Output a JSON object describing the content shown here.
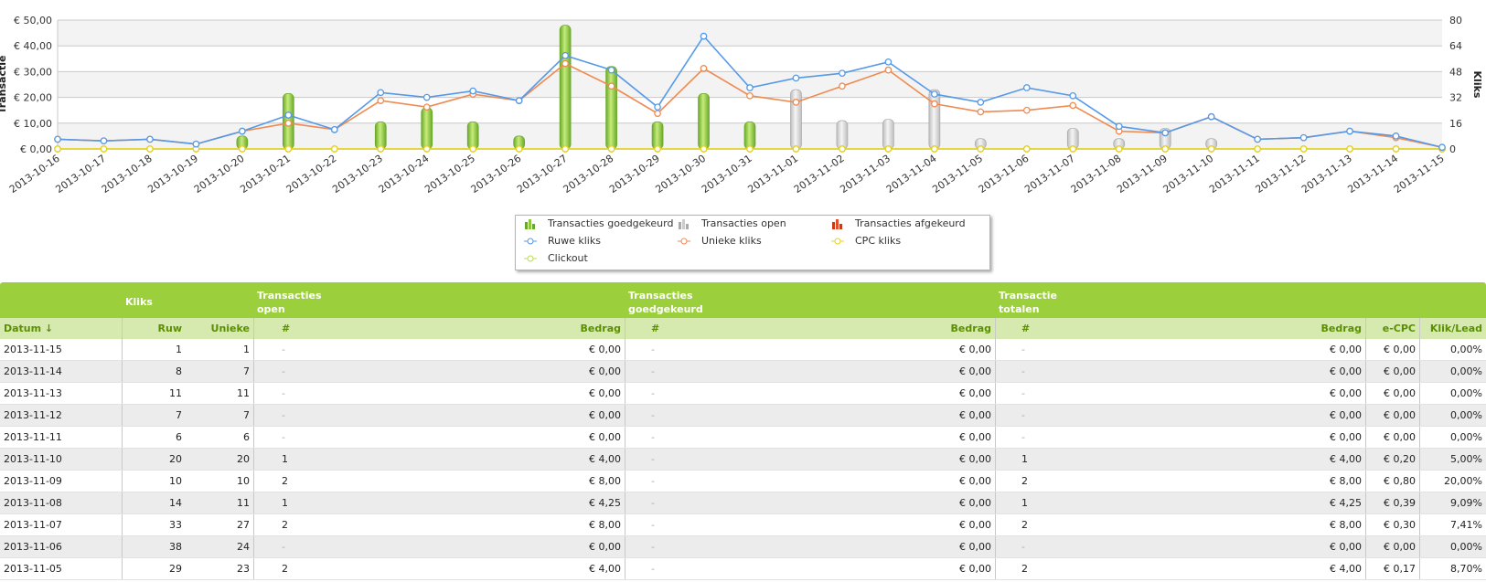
{
  "chart_data": {
    "type": "line",
    "dates": [
      "2013-10-16",
      "2013-10-17",
      "2013-10-18",
      "2013-10-19",
      "2013-10-20",
      "2013-10-21",
      "2013-10-22",
      "2013-10-23",
      "2013-10-24",
      "2013-10-25",
      "2013-10-26",
      "2013-10-27",
      "2013-10-28",
      "2013-10-29",
      "2013-10-30",
      "2013-10-31",
      "2013-11-01",
      "2013-11-02",
      "2013-11-03",
      "2013-11-04",
      "2013-11-05",
      "2013-11-06",
      "2013-11-07",
      "2013-11-08",
      "2013-11-09",
      "2013-11-10",
      "2013-11-11",
      "2013-11-12",
      "2013-11-13",
      "2013-11-14",
      "2013-11-15"
    ],
    "y_left_label": "Transactie",
    "y_left_ticks": [
      "€ 0,00",
      "€ 10,00",
      "€ 20,00",
      "€ 30,00",
      "€ 40,00",
      "€ 50,00"
    ],
    "y_left_range": [
      0,
      50
    ],
    "y_right_label": "Kliks",
    "y_right_ticks": [
      "0",
      "16",
      "32",
      "48",
      "64",
      "80"
    ],
    "y_right_range": [
      0,
      80
    ],
    "grid": true,
    "series": [
      {
        "name": "Transacties goedgekeurd",
        "kind": "bar",
        "color": "#8cc63f",
        "values": [
          0,
          0,
          0,
          0,
          5,
          21.5,
          0,
          10.5,
          16,
          10.5,
          5,
          48,
          32,
          10.5,
          21.5,
          10.5,
          0,
          0,
          0,
          0,
          0,
          0,
          0,
          0,
          0,
          0,
          0,
          0,
          0,
          0,
          0
        ]
      },
      {
        "name": "Transacties open",
        "kind": "bar",
        "color": "#cfcfcf",
        "values": [
          0,
          0,
          0,
          0,
          0,
          0,
          0,
          0,
          0,
          0,
          0,
          0,
          0,
          0,
          0,
          0,
          23,
          11,
          11.5,
          23,
          4,
          0,
          8,
          4,
          8,
          4,
          0,
          0,
          0,
          0,
          0
        ]
      },
      {
        "name": "Transacties afgekeurd",
        "kind": "bar",
        "color": "#e0502a",
        "values": [
          0,
          0,
          0,
          0,
          0,
          0,
          0,
          0,
          0,
          0,
          0,
          0,
          0,
          0,
          0,
          0,
          0,
          0,
          0,
          0,
          0,
          0,
          0,
          0,
          0,
          0,
          0,
          0,
          0,
          0,
          0
        ]
      },
      {
        "name": "Ruwe kliks",
        "kind": "line",
        "color": "#5599e8",
        "values": [
          6,
          5,
          6,
          3,
          11,
          21,
          12,
          35,
          32,
          36,
          30,
          58,
          49,
          26,
          70,
          38,
          44,
          47,
          54,
          34,
          29,
          38,
          33,
          14,
          10,
          20,
          6,
          7,
          11,
          8,
          1
        ]
      },
      {
        "name": "Unieke kliks",
        "kind": "line",
        "color": "#f08a50",
        "values": [
          6,
          5,
          6,
          3,
          11,
          16,
          12,
          30,
          26,
          34,
          30,
          53,
          39,
          22,
          50,
          33,
          29,
          39,
          49,
          28,
          23,
          24,
          27,
          11,
          10,
          20,
          6,
          7,
          11,
          7,
          1
        ]
      },
      {
        "name": "CPC kliks",
        "kind": "line",
        "color": "#e8d020",
        "values": [
          0,
          0,
          0,
          0,
          0,
          0,
          0,
          0,
          0,
          0,
          0,
          0,
          0,
          0,
          0,
          0,
          0,
          0,
          0,
          0,
          0,
          0,
          0,
          0,
          0,
          0,
          0,
          0,
          0,
          0,
          0
        ]
      },
      {
        "name": "Clickout",
        "kind": "line",
        "color": "#b8e04a",
        "values": [
          0,
          0,
          0,
          0,
          0,
          0,
          0,
          0,
          0,
          0,
          0,
          0,
          0,
          0,
          0,
          0,
          0,
          0,
          0,
          0,
          0,
          0,
          0,
          0,
          0,
          0,
          0,
          0,
          0,
          0,
          0
        ]
      }
    ]
  },
  "table": {
    "group_headers": {
      "kliks": "Kliks",
      "open_line1": "Transacties",
      "open_line2": "open",
      "goed_line1": "Transacties",
      "goed_line2": "goedgekeurd",
      "tot_line1": "Transactie",
      "tot_line2": "totalen"
    },
    "columns": {
      "datum": "Datum ↓",
      "ruw": "Ruw",
      "unieke": "Unieke",
      "open_n": "#",
      "open_bedrag": "Bedrag",
      "goed_n": "#",
      "goed_bedrag": "Bedrag",
      "tot_n": "#",
      "tot_bedrag": "Bedrag",
      "ecpc": "e-CPC",
      "klik_lead": "Klik/Lead"
    },
    "rows": [
      {
        "datum": "2013-11-15",
        "ruw": "1",
        "unieke": "1",
        "open_n": "-",
        "open_bedrag": "€ 0,00",
        "goed_n": "-",
        "goed_bedrag": "€ 0,00",
        "tot_n": "-",
        "tot_bedrag": "€ 0,00",
        "ecpc": "€ 0,00",
        "klik_lead": "0,00%"
      },
      {
        "datum": "2013-11-14",
        "ruw": "8",
        "unieke": "7",
        "open_n": "-",
        "open_bedrag": "€ 0,00",
        "goed_n": "-",
        "goed_bedrag": "€ 0,00",
        "tot_n": "-",
        "tot_bedrag": "€ 0,00",
        "ecpc": "€ 0,00",
        "klik_lead": "0,00%"
      },
      {
        "datum": "2013-11-13",
        "ruw": "11",
        "unieke": "11",
        "open_n": "-",
        "open_bedrag": "€ 0,00",
        "goed_n": "-",
        "goed_bedrag": "€ 0,00",
        "tot_n": "-",
        "tot_bedrag": "€ 0,00",
        "ecpc": "€ 0,00",
        "klik_lead": "0,00%"
      },
      {
        "datum": "2013-11-12",
        "ruw": "7",
        "unieke": "7",
        "open_n": "-",
        "open_bedrag": "€ 0,00",
        "goed_n": "-",
        "goed_bedrag": "€ 0,00",
        "tot_n": "-",
        "tot_bedrag": "€ 0,00",
        "ecpc": "€ 0,00",
        "klik_lead": "0,00%"
      },
      {
        "datum": "2013-11-11",
        "ruw": "6",
        "unieke": "6",
        "open_n": "-",
        "open_bedrag": "€ 0,00",
        "goed_n": "-",
        "goed_bedrag": "€ 0,00",
        "tot_n": "-",
        "tot_bedrag": "€ 0,00",
        "ecpc": "€ 0,00",
        "klik_lead": "0,00%"
      },
      {
        "datum": "2013-11-10",
        "ruw": "20",
        "unieke": "20",
        "open_n": "1",
        "open_bedrag": "€ 4,00",
        "goed_n": "-",
        "goed_bedrag": "€ 0,00",
        "tot_n": "1",
        "tot_bedrag": "€ 4,00",
        "ecpc": "€ 0,20",
        "klik_lead": "5,00%"
      },
      {
        "datum": "2013-11-09",
        "ruw": "10",
        "unieke": "10",
        "open_n": "2",
        "open_bedrag": "€ 8,00",
        "goed_n": "-",
        "goed_bedrag": "€ 0,00",
        "tot_n": "2",
        "tot_bedrag": "€ 8,00",
        "ecpc": "€ 0,80",
        "klik_lead": "20,00%"
      },
      {
        "datum": "2013-11-08",
        "ruw": "14",
        "unieke": "11",
        "open_n": "1",
        "open_bedrag": "€ 4,25",
        "goed_n": "-",
        "goed_bedrag": "€ 0,00",
        "tot_n": "1",
        "tot_bedrag": "€ 4,25",
        "ecpc": "€ 0,39",
        "klik_lead": "9,09%"
      },
      {
        "datum": "2013-11-07",
        "ruw": "33",
        "unieke": "27",
        "open_n": "2",
        "open_bedrag": "€ 8,00",
        "goed_n": "-",
        "goed_bedrag": "€ 0,00",
        "tot_n": "2",
        "tot_bedrag": "€ 8,00",
        "ecpc": "€ 0,30",
        "klik_lead": "7,41%"
      },
      {
        "datum": "2013-11-06",
        "ruw": "38",
        "unieke": "24",
        "open_n": "-",
        "open_bedrag": "€ 0,00",
        "goed_n": "-",
        "goed_bedrag": "€ 0,00",
        "tot_n": "-",
        "tot_bedrag": "€ 0,00",
        "ecpc": "€ 0,00",
        "klik_lead": "0,00%"
      },
      {
        "datum": "2013-11-05",
        "ruw": "29",
        "unieke": "23",
        "open_n": "2",
        "open_bedrag": "€ 4,00",
        "goed_n": "-",
        "goed_bedrag": "€ 0,00",
        "tot_n": "2",
        "tot_bedrag": "€ 4,00",
        "ecpc": "€ 0,17",
        "klik_lead": "8,70%"
      }
    ]
  }
}
